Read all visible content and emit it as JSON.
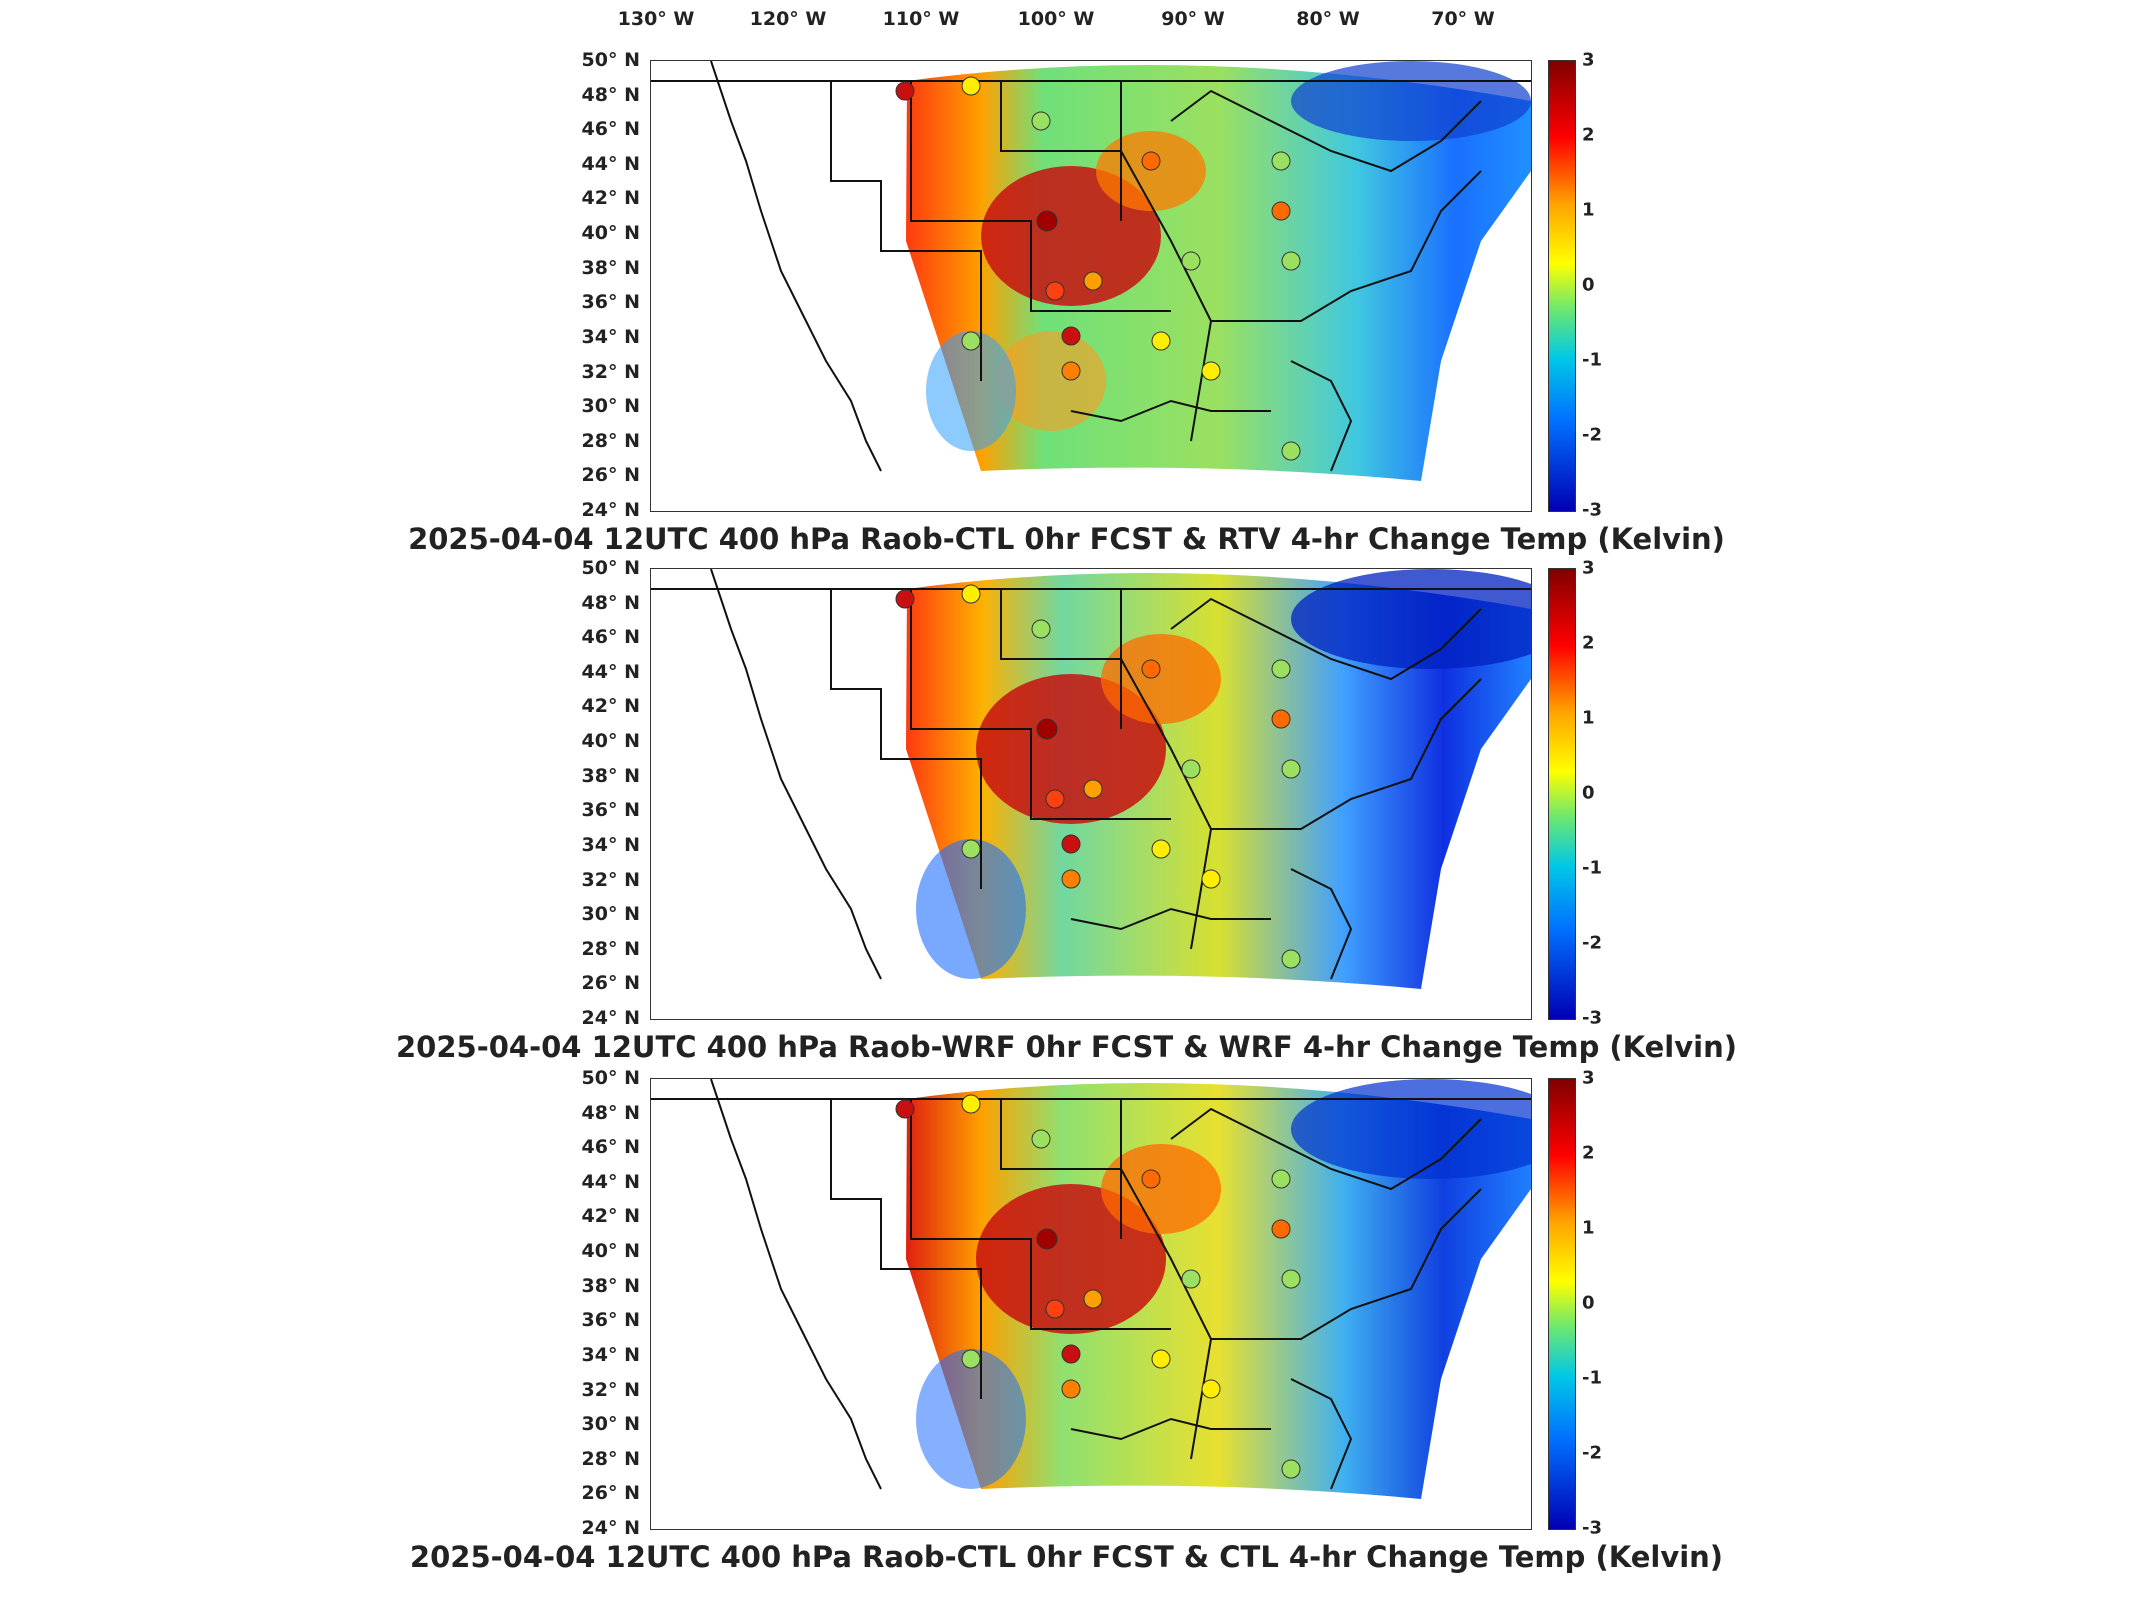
{
  "lon_labels": [
    "130° W",
    "120° W",
    "110° W",
    "100° W",
    "90° W",
    "80° W",
    "70° W"
  ],
  "lat_labels": [
    "50° N",
    "48° N",
    "46° N",
    "44° N",
    "42° N",
    "40° N",
    "38° N",
    "36° N",
    "34° N",
    "32° N",
    "30° N",
    "28° N",
    "26° N",
    "24° N"
  ],
  "colorbar": {
    "ticks": [
      "3",
      "2",
      "1",
      "0",
      "-1",
      "-2",
      "-3"
    ],
    "unit": "Kelvin",
    "range": [
      -3,
      3
    ]
  },
  "panels": [
    {
      "caption": "2025-04-04 12UTC 400 hPa Raob-CTL 0hr FCST & RTV 4-hr Change Temp (Kelvin)"
    },
    {
      "caption": "2025-04-04 12UTC 400 hPa Raob-WRF 0hr FCST & WRF 4-hr Change Temp (Kelvin)"
    },
    {
      "caption": "2025-04-04 12UTC 400 hPa Raob-CTL 0hr FCST & CTL 4-hr Change Temp (Kelvin)"
    }
  ],
  "colors": {
    "dark_red": "#8b0000",
    "red": "#e03020",
    "orange": "#ff8c00",
    "yellow": "#ffee00",
    "green": "#80e070",
    "cyan": "#00c8e6",
    "blue": "#1060ff",
    "navy": "#000090"
  }
}
